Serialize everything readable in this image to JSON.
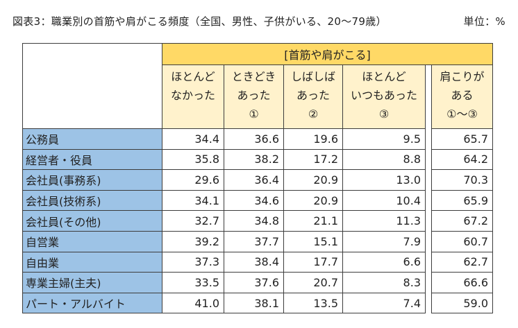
{
  "title": "図表3：職業別の首筋や肩がこる頻度（全国、男性、子供がいる、20〜79歳）",
  "unit": "単位：%",
  "group_header": "[首筋や肩がこる]",
  "columns": [
    [
      "ほとんど",
      "なかった"
    ],
    [
      "ときどき",
      "あった",
      "①"
    ],
    [
      "しばしば",
      "あった",
      "②"
    ],
    [
      "ほとんど",
      "いつもあった",
      "③"
    ],
    [
      "肩こりが",
      "ある",
      "①〜③"
    ]
  ],
  "rows": [
    {
      "label": "公務員",
      "values": [
        "34.4",
        "36.6",
        "19.6",
        "9.5",
        "65.7"
      ]
    },
    {
      "label": "経営者・役員",
      "values": [
        "35.8",
        "38.2",
        "17.2",
        "8.8",
        "64.2"
      ]
    },
    {
      "label": "会社員(事務系)",
      "values": [
        "29.6",
        "36.4",
        "20.9",
        "13.0",
        "70.3"
      ]
    },
    {
      "label": "会社員(技術系)",
      "values": [
        "34.1",
        "34.6",
        "20.9",
        "10.4",
        "65.9"
      ]
    },
    {
      "label": "会社員(その他)",
      "values": [
        "32.7",
        "34.8",
        "21.1",
        "11.3",
        "67.2"
      ]
    },
    {
      "label": "自営業",
      "values": [
        "39.2",
        "37.7",
        "15.1",
        "7.9",
        "60.7"
      ]
    },
    {
      "label": "自由業",
      "values": [
        "37.3",
        "38.4",
        "17.7",
        "6.6",
        "62.7"
      ]
    },
    {
      "label": "専業主婦(主夫)",
      "values": [
        "33.5",
        "37.6",
        "20.7",
        "8.3",
        "66.6"
      ]
    },
    {
      "label": "パート・アルバイト",
      "values": [
        "41.0",
        "38.1",
        "13.5",
        "7.4",
        "59.0"
      ]
    }
  ],
  "colors": {
    "group_header_bg": "#ffd966",
    "column_header_bg": "#fff2cc",
    "row_label_bg": "#9dc3e6"
  }
}
